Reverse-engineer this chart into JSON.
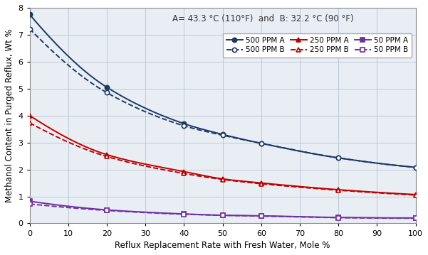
{
  "title_annotation": "A= 43.3 °C (110°F)  and  B: 32.2 °C (90 °F)",
  "xlabel": "Reflux Replacement Rate with Fresh Water, Mole %",
  "ylabel": "Methanol Content in Purged Reflux, Wt %",
  "xlim": [
    0,
    100
  ],
  "ylim": [
    0,
    8
  ],
  "yticks": [
    0,
    1,
    2,
    3,
    4,
    5,
    6,
    7,
    8
  ],
  "xticks": [
    0,
    10,
    20,
    30,
    40,
    50,
    60,
    70,
    80,
    90,
    100
  ],
  "x_data": [
    0,
    20,
    40,
    50,
    60,
    80,
    100
  ],
  "series": [
    {
      "label": "500 PPM A",
      "color": "#1f3864",
      "linestyle": "-",
      "marker": "o",
      "markerfacecolor": "#1f3864",
      "markeredgecolor": "#1f3864",
      "y": [
        7.75,
        5.05,
        3.7,
        3.3,
        2.97,
        2.43,
        2.08
      ]
    },
    {
      "label": "500 PPM B",
      "color": "#1f3864",
      "linestyle": "--",
      "marker": "o",
      "markerfacecolor": "white",
      "markeredgecolor": "#1f3864",
      "y": [
        7.22,
        4.85,
        3.62,
        3.27,
        2.97,
        2.43,
        2.08
      ]
    },
    {
      "label": "250 PPM A",
      "color": "#c00000",
      "linestyle": "-",
      "marker": "^",
      "markerfacecolor": "#c00000",
      "markeredgecolor": "#c00000",
      "y": [
        4.0,
        2.55,
        1.92,
        1.65,
        1.5,
        1.25,
        1.07
      ]
    },
    {
      "label": "250 PPM B",
      "color": "#c00000",
      "linestyle": "--",
      "marker": "^",
      "markerfacecolor": "white",
      "markeredgecolor": "#c00000",
      "y": [
        3.73,
        2.48,
        1.85,
        1.63,
        1.47,
        1.23,
        1.05
      ]
    },
    {
      "label": "50 PPM A",
      "color": "#7030a0",
      "linestyle": "-",
      "marker": "s",
      "markerfacecolor": "#7030a0",
      "markeredgecolor": "#7030a0",
      "y": [
        0.82,
        0.5,
        0.35,
        0.3,
        0.28,
        0.22,
        0.2
      ]
    },
    {
      "label": "50 PPM B",
      "color": "#7030a0",
      "linestyle": "--",
      "marker": "s",
      "markerfacecolor": "white",
      "markeredgecolor": "#7030a0",
      "y": [
        0.72,
        0.48,
        0.34,
        0.3,
        0.27,
        0.21,
        0.19
      ]
    }
  ],
  "background_color": "#ffffff",
  "grid_color": "#b8c4d0",
  "annotation_fontsize": 8.5,
  "legend_fontsize": 7.5,
  "axis_label_fontsize": 8.5,
  "tick_fontsize": 8
}
